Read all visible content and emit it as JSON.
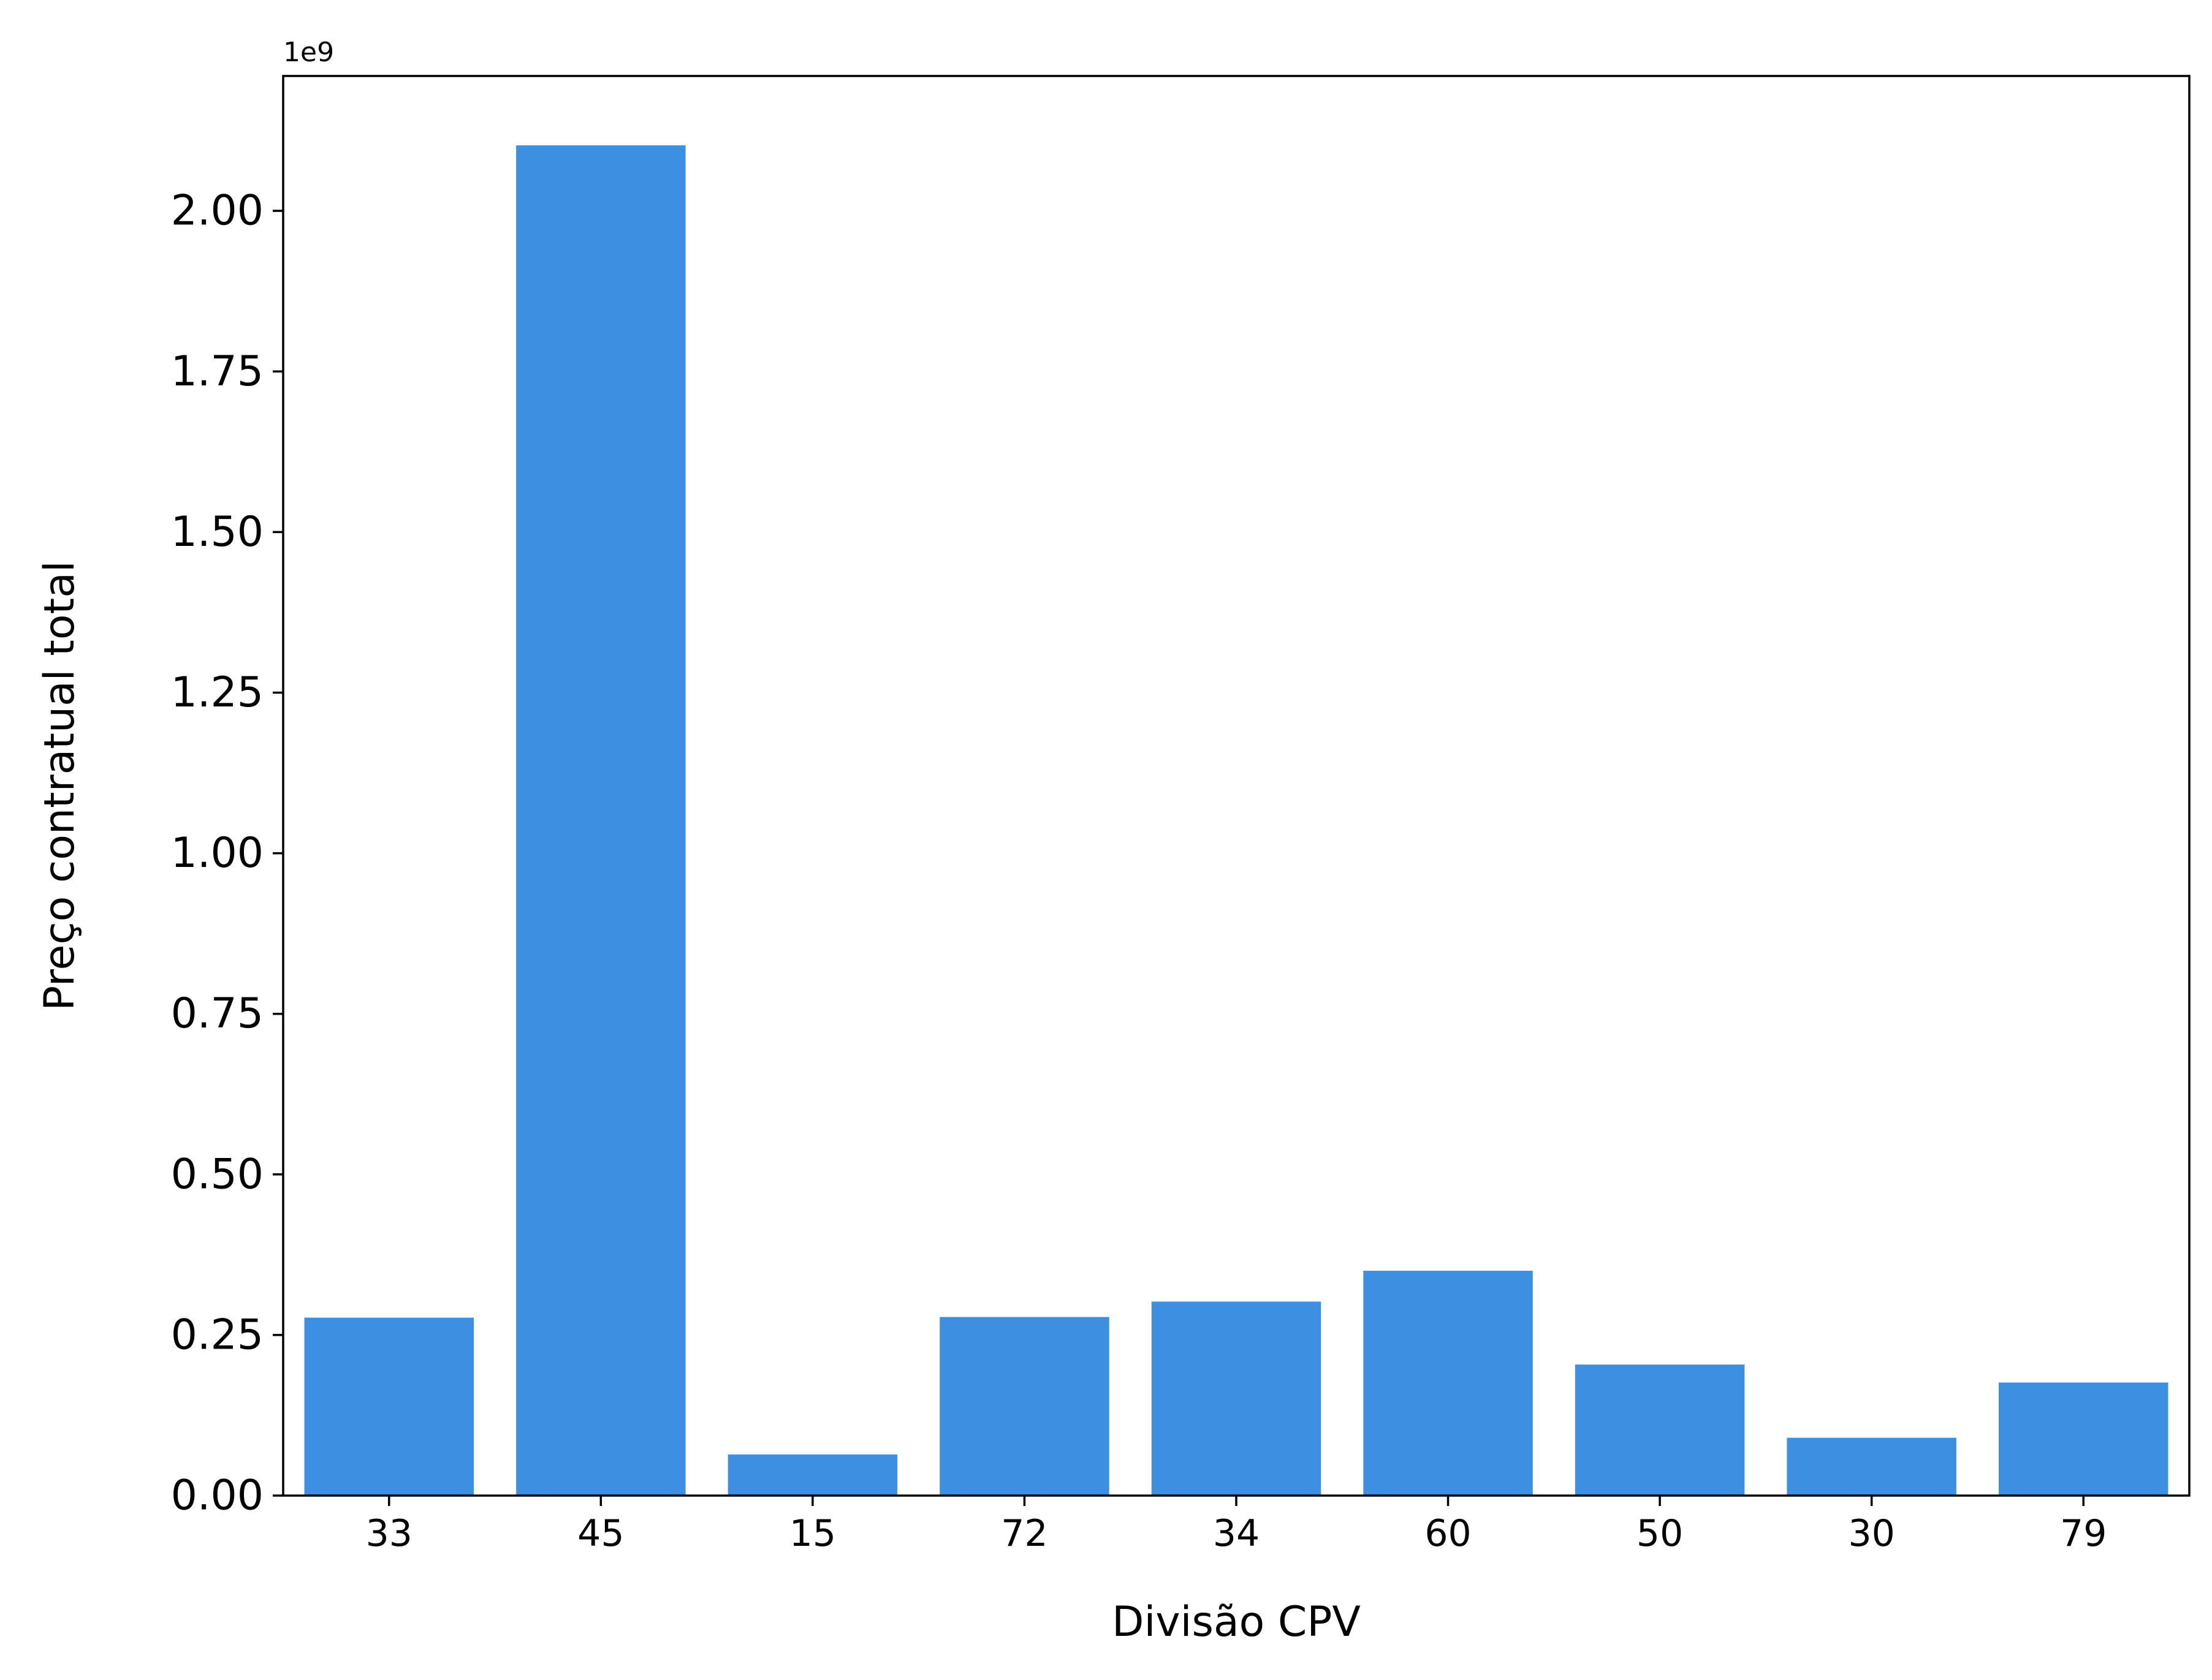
{
  "chart_data": {
    "type": "bar",
    "title": "",
    "xlabel": "Divisão CPV",
    "ylabel": "Preço contratual total",
    "y_offset_label": "1e9",
    "categories": [
      "33",
      "45",
      "15",
      "72",
      "34",
      "60",
      "50",
      "30",
      "79"
    ],
    "values": [
      277000000,
      2102000000,
      64000000,
      278000000,
      302000000,
      350000000,
      204000000,
      90000000,
      176000000
    ],
    "ylim": [
      0,
      2210000000
    ],
    "yticks": [
      0,
      250000000,
      500000000,
      750000000,
      1000000000,
      1250000000,
      1500000000,
      1750000000,
      2000000000
    ],
    "ytick_labels": [
      "0.00",
      "0.25",
      "0.50",
      "0.75",
      "1.00",
      "1.25",
      "1.50",
      "1.75",
      "2.00"
    ],
    "grid": false,
    "bar_color": "#3d8fe2"
  }
}
